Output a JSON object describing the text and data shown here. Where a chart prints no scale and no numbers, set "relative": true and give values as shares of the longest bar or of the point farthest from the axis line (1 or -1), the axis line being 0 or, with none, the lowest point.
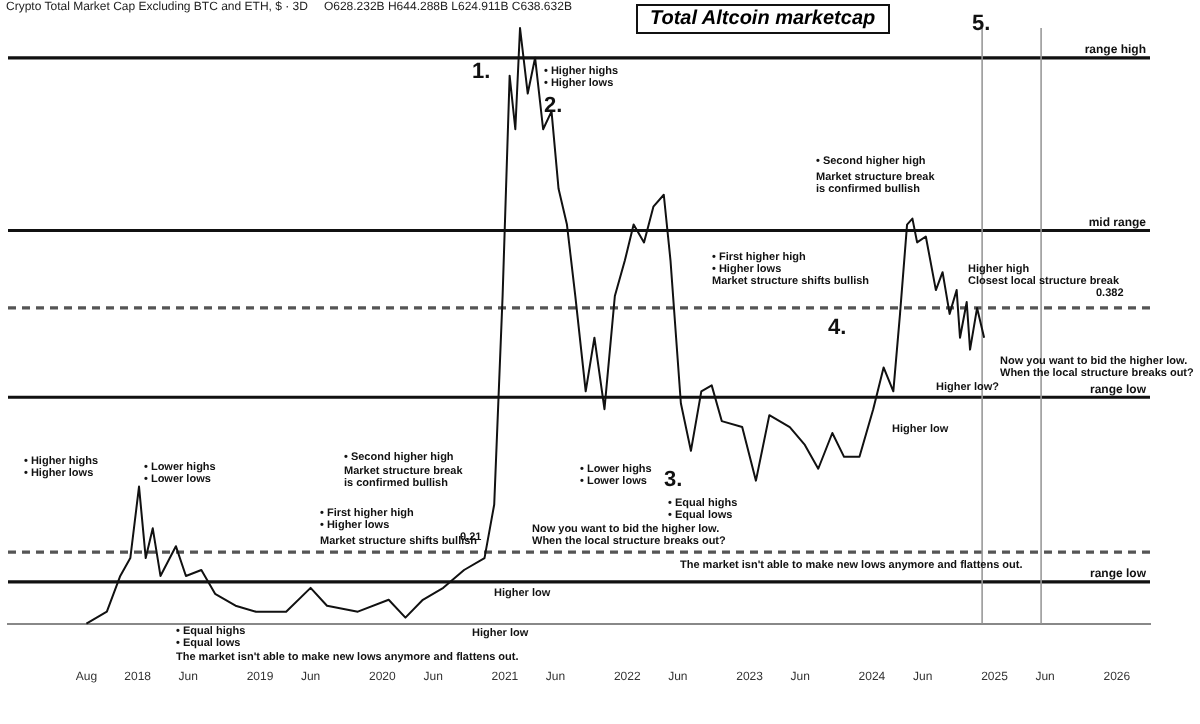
{
  "chart_data": {
    "type": "line",
    "title": "Total Altcoin marketcap",
    "subtitle": "Crypto Total Market Cap Excluding BTC and ETH, $ · 3D",
    "relative": true,
    "grid": false,
    "legend": false,
    "marker": "none",
    "line_style": "solid",
    "x": [
      "2017-08-01",
      "2017-10-01",
      "2017-11-10",
      "2017-12-10",
      "2018-01-05",
      "2018-01-25",
      "2018-02-15",
      "2018-03-10",
      "2018-04-25",
      "2018-05-25",
      "2018-07-10",
      "2018-08-20",
      "2018-10-20",
      "2018-12-20",
      "2019-03-20",
      "2019-06-01",
      "2019-07-20",
      "2019-10-20",
      "2020-01-20",
      "2020-03-10",
      "2020-05-01",
      "2020-07-01",
      "2020-09-01",
      "2020-11-01",
      "2020-11-30",
      "2020-12-25",
      "2021-01-15",
      "2021-02-01",
      "2021-02-15",
      "2021-03-10",
      "2021-04-01",
      "2021-04-25",
      "2021-05-20",
      "2021-06-10",
      "2021-07-05",
      "2021-07-30",
      "2021-08-30",
      "2021-09-25",
      "2021-10-25",
      "2021-11-25",
      "2021-12-25",
      "2022-01-20",
      "2022-02-20",
      "2022-03-20",
      "2022-04-20",
      "2022-05-10",
      "2022-06-10",
      "2022-07-10",
      "2022-08-10",
      "2022-09-10",
      "2022-10-10",
      "2022-12-10",
      "2023-01-20",
      "2023-03-01",
      "2023-05-01",
      "2023-06-15",
      "2023-07-25",
      "2023-09-05",
      "2023-10-10",
      "2023-11-25",
      "2024-01-05",
      "2024-02-05",
      "2024-03-05",
      "2024-03-25",
      "2024-04-15",
      "2024-05-01",
      "2024-05-15",
      "2024-06-10",
      "2024-07-10",
      "2024-07-30",
      "2024-08-20",
      "2024-09-10",
      "2024-09-20",
      "2024-10-10",
      "2024-10-20",
      "2024-11-10",
      "2024-12-01"
    ],
    "series": [
      {
        "color": "#111111",
        "values": [
          0,
          0.02,
          0.08,
          0.11,
          0.23,
          0.11,
          0.16,
          0.08,
          0.13,
          0.08,
          0.09,
          0.05,
          0.03,
          0.02,
          0.02,
          0.06,
          0.03,
          0.02,
          0.04,
          0.01,
          0.04,
          0.06,
          0.09,
          0.11,
          0.2,
          0.55,
          0.92,
          0.83,
          1,
          0.89,
          0.95,
          0.83,
          0.86,
          0.73,
          0.67,
          0.55,
          0.39,
          0.48,
          0.36,
          0.55,
          0.61,
          0.67,
          0.64,
          0.7,
          0.72,
          0.61,
          0.37,
          0.29,
          0.39,
          0.4,
          0.34,
          0.33,
          0.24,
          0.35,
          0.33,
          0.3,
          0.26,
          0.32,
          0.28,
          0.28,
          0.36,
          0.43,
          0.39,
          0.52,
          0.67,
          0.68,
          0.64,
          0.65,
          0.56,
          0.59,
          0.52,
          0.56,
          0.48,
          0.54,
          0.46,
          0.53,
          0.48
        ]
      }
    ],
    "xlim": [
      "2016-12-10",
      "2026-04-10"
    ],
    "xticks": [
      {
        "value": "2017-08-01",
        "label": "Aug"
      },
      {
        "value": "2018-01-01",
        "label": "2018"
      },
      {
        "value": "2018-06-01",
        "label": "Jun"
      },
      {
        "value": "2019-01-01",
        "label": "2019"
      },
      {
        "value": "2019-06-01",
        "label": "Jun"
      },
      {
        "value": "2020-01-01",
        "label": "2020"
      },
      {
        "value": "2020-06-01",
        "label": "Jun"
      },
      {
        "value": "2021-01-01",
        "label": "2021"
      },
      {
        "value": "2021-06-01",
        "label": "Jun"
      },
      {
        "value": "2022-01-01",
        "label": "2022"
      },
      {
        "value": "2022-06-01",
        "label": "Jun"
      },
      {
        "value": "2023-01-01",
        "label": "2023"
      },
      {
        "value": "2023-06-01",
        "label": "Jun"
      },
      {
        "value": "2024-01-01",
        "label": "2024"
      },
      {
        "value": "2024-06-01",
        "label": "Jun"
      },
      {
        "value": "2025-01-01",
        "label": "2025"
      },
      {
        "value": "2025-06-01",
        "label": "Jun"
      },
      {
        "value": "2026-01-01",
        "label": "2026"
      }
    ],
    "ref_lines": [
      {
        "axis": "y",
        "value": 0.95,
        "label": "range high",
        "color": "#111111",
        "line_style": "solid"
      },
      {
        "axis": "y",
        "value": 0.66,
        "label": "mid range",
        "color": "#111111",
        "line_style": "solid"
      },
      {
        "axis": "y",
        "value": 0.38,
        "label": "range low",
        "color": "#111111",
        "line_style": "solid"
      },
      {
        "axis": "y",
        "value": 0.07,
        "label": "range low",
        "color": "#111111",
        "line_style": "solid"
      },
      {
        "axis": "y",
        "value": 0.53,
        "color": "#555555",
        "line_style": "dashed"
      },
      {
        "axis": "y",
        "value": 0.12,
        "color": "#555555",
        "line_style": "dashed"
      },
      {
        "axis": "x",
        "value": "2024-11-25",
        "color": "#999999",
        "line_style": "solid"
      },
      {
        "axis": "x",
        "value": "2025-05-20",
        "color": "#999999",
        "line_style": "solid"
      }
    ],
    "annotations": [
      "O628.232B H644.288B L624.911B C638.632B",
      "• Higher highs\n• Higher lows",
      "• Lower highs\n• Lower lows",
      "• Equal highs\n• Equal lows",
      "The market isn't able to make new lows anymore and flattens out.",
      "• First higher high\n• Higher lows",
      "Market structure shifts bullish",
      "• Second higher high",
      "Market structure break\nis confirmed bullish",
      "Higher low",
      "Higher low",
      "Now you want to bid the higher low.\nWhen the local structure breaks out?",
      "1.",
      "• Higher highs\n• Higher lows",
      "2.",
      "• Lower highs\n• Lower lows",
      "3.",
      "• Equal highs\n• Equal lows",
      "The market isn't able to make new lows anymore and flattens out.",
      "• Second higher high",
      "Market structure break\nis confirmed bullish",
      "• First higher high\n• Higher lows",
      "Market structure shifts bullish",
      "4.",
      "Higher low",
      "Higher low?",
      "Higher high\nClosest local structure break",
      "5.",
      "Now you want to bid the higher low.\nWhen the local structure breaks out?",
      "0.382",
      "0.21"
    ]
  }
}
